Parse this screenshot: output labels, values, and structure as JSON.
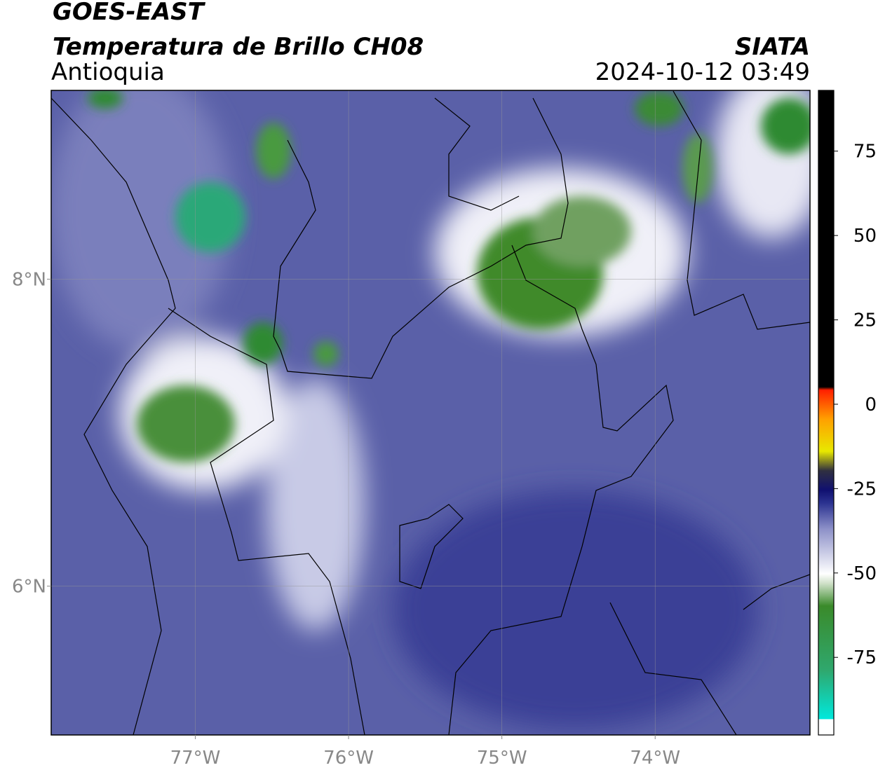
{
  "header": {
    "satellite": "GOES-EAST",
    "product": "Temperatura de Brillo CH08",
    "region": "Antioquia",
    "agency": "SIATA",
    "datetime": "2024-10-12 03:49"
  },
  "map": {
    "xlim": [
      -77.94,
      -72.99
    ],
    "ylim": [
      5.03,
      9.23
    ],
    "xticks": [
      {
        "value": -77,
        "label": "77°W"
      },
      {
        "value": -76,
        "label": "76°W"
      },
      {
        "value": -75,
        "label": "75°W"
      },
      {
        "value": -74,
        "label": "74°W"
      }
    ],
    "yticks": [
      {
        "value": 8,
        "label": "8°N"
      },
      {
        "value": 6,
        "label": "6°N"
      }
    ],
    "grid": true
  },
  "colorbar": {
    "lim": [
      -98,
      93
    ],
    "ticks": [
      75,
      50,
      25,
      0,
      -25,
      -50,
      -75
    ]
  }
}
